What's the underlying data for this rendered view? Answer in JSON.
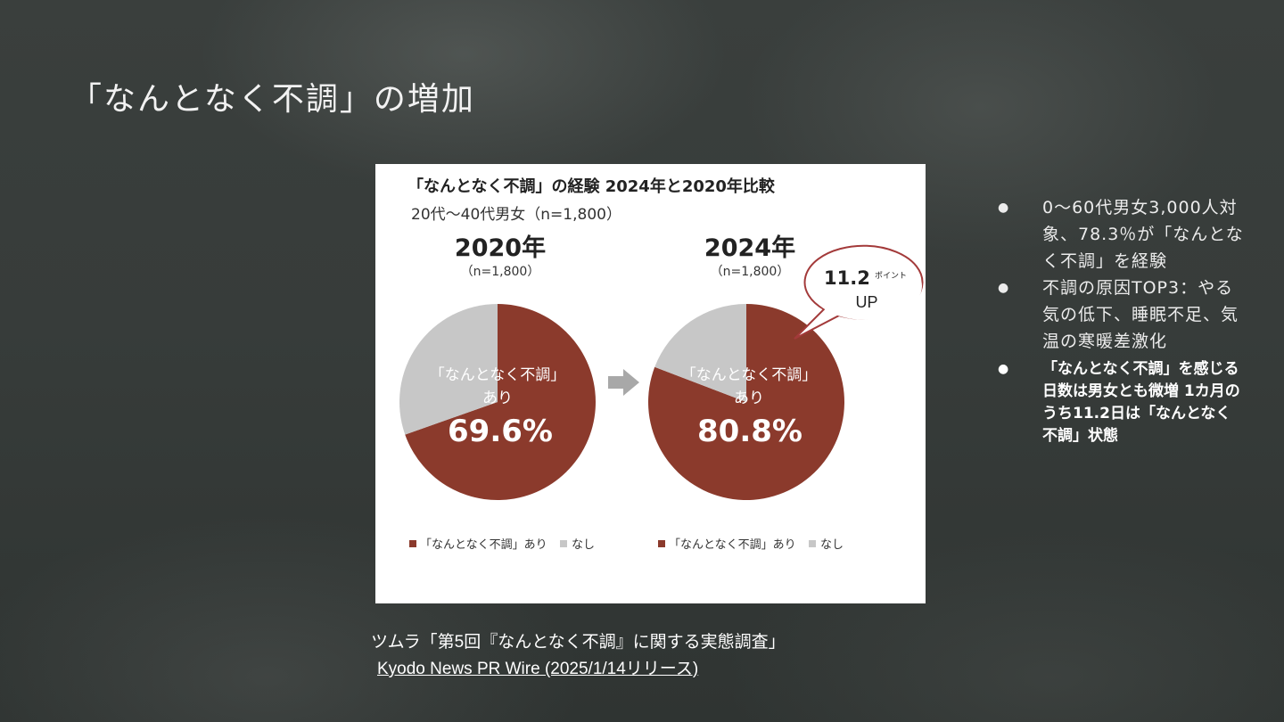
{
  "slide": {
    "title": "「なんとなく不調」の増加"
  },
  "chart_data": {
    "type": "pie",
    "title": "「なんとなく不調」の経験 2024年と2020年比較",
    "subtitle": "20代～40代男女（n=1,800）",
    "pies": [
      {
        "year_label": "2020年",
        "n_label": "（n=1,800）",
        "center_label_line1": "「なんとなく不調」",
        "center_label_line2": "あり",
        "value_label": "69.6%",
        "slices": [
          {
            "name": "「なんとなく不調」あり",
            "value": 69.6,
            "color": "#8b3a2c"
          },
          {
            "name": "なし",
            "value": 30.4,
            "color": "#c7c7c7"
          }
        ]
      },
      {
        "year_label": "2024年",
        "n_label": "（n=1,800）",
        "center_label_line1": "「なんとなく不調」",
        "center_label_line2": "あり",
        "value_label": "80.8%",
        "slices": [
          {
            "name": "「なんとなく不調」あり",
            "value": 80.8,
            "color": "#8b3a2c"
          },
          {
            "name": "なし",
            "value": 19.2,
            "color": "#c7c7c7"
          }
        ]
      }
    ],
    "callout": {
      "value": "11.2",
      "unit": "ポイント",
      "suffix": "UP"
    },
    "legend": {
      "items": [
        "「なんとなく不調」あり",
        "なし"
      ],
      "colors": [
        "#8b3a2c",
        "#c7c7c7"
      ]
    }
  },
  "bullets": [
    "0～60代男女3,000人対象、78.3％が「なんとなく不調」を経験",
    "不調の原因TOP3：やる気の低下、睡眠不足、気温の寒暖差激化",
    "「なんとなく不調」を感じる日数は男女とも微増 1カ月のうち11.2日は「なんとなく不調」状態"
  ],
  "source": {
    "line1": "ツムラ「第5回『なんとなく不調』に関する実態調査」",
    "link_text": "Kyodo News PR Wire (2025/1/14リリース)"
  }
}
